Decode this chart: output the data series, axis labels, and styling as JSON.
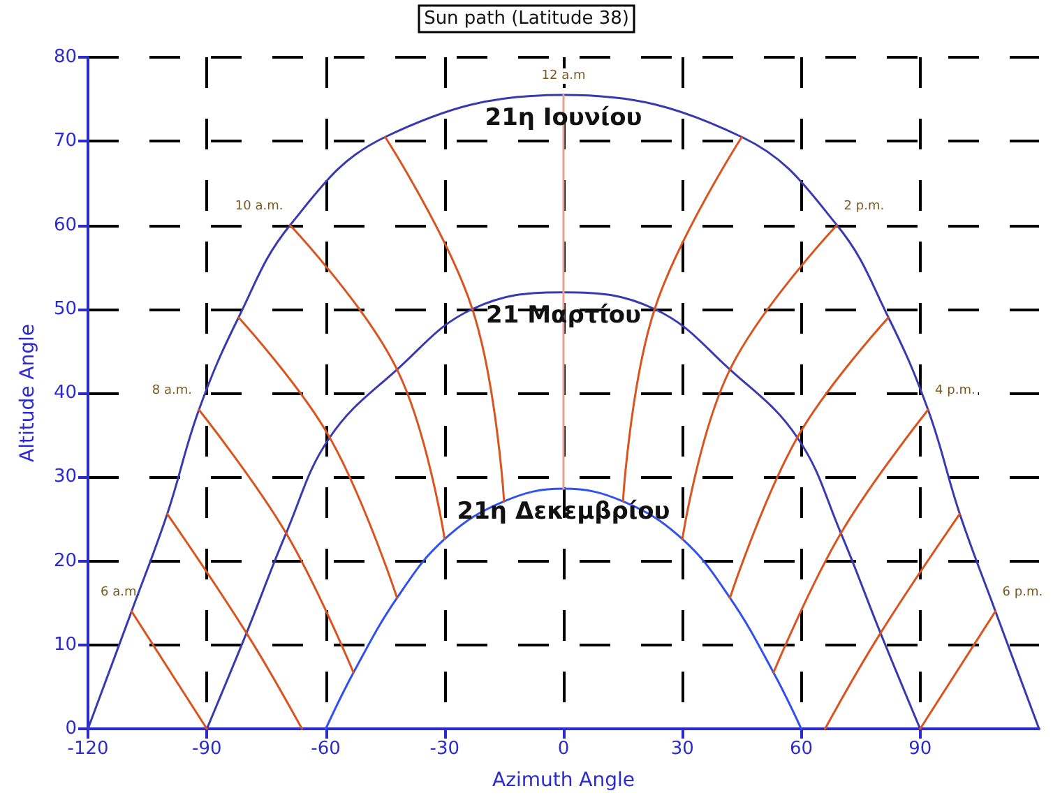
{
  "chart_data": {
    "type": "line",
    "title": "Sun path (Latitude 38)",
    "xlabel": "Azimuth Angle",
    "ylabel": "Altitude Angle",
    "xlim": [
      -120,
      120
    ],
    "xticks": [
      -120,
      -90,
      -60,
      -30,
      0,
      30,
      60,
      90
    ],
    "ylim": [
      0,
      80
    ],
    "yticks": [
      0,
      10,
      20,
      30,
      40,
      50,
      60,
      70,
      80
    ],
    "grid": true,
    "legend": false,
    "line_style": "solid",
    "series": [
      {
        "name": "21η Ιουνίου",
        "color": "#3a3ab0",
        "x": [
          -120,
          -109,
          -100,
          -92,
          -82,
          -69,
          -45,
          0,
          45,
          69,
          82,
          92,
          100,
          109,
          120
        ],
        "values": [
          0,
          14,
          25.6,
          38,
          49,
          60,
          70.5,
          75.5,
          70.5,
          60,
          49,
          38,
          25.6,
          14,
          0
        ]
      },
      {
        "name": "21 Μαρτίου",
        "color": "#3a3ab0",
        "x": [
          -90,
          -80,
          -70,
          -59,
          -42,
          -23,
          0,
          23,
          42,
          59,
          70,
          80,
          90
        ],
        "values": [
          0,
          11.4,
          23.3,
          34.7,
          42.8,
          50,
          52,
          50,
          42.8,
          34.7,
          23.3,
          11.4,
          0
        ]
      },
      {
        "name": "21η Δεκεμβρίου",
        "color": "#3050f0",
        "x": [
          -60,
          -53,
          -42,
          -30,
          -15,
          0,
          15,
          30,
          42,
          53,
          60
        ],
        "values": [
          0,
          6.7,
          15.6,
          22.6,
          27.1,
          28.6,
          27.1,
          22.6,
          15.6,
          6.7,
          0
        ]
      },
      {
        "color": "#d9541e",
        "x": [
          -109,
          -90
        ],
        "values": [
          14,
          0
        ]
      },
      {
        "color": "#d9541e",
        "x": [
          -100,
          -80,
          -66
        ],
        "values": [
          25.6,
          11.4,
          0
        ]
      },
      {
        "color": "#d9541e",
        "x": [
          -92,
          -70,
          -53
        ],
        "values": [
          38,
          23.3,
          6.7
        ]
      },
      {
        "color": "#d9541e",
        "x": [
          -82,
          -59,
          -42
        ],
        "values": [
          49,
          34.7,
          15.6
        ]
      },
      {
        "color": "#d9541e",
        "x": [
          -69,
          -42,
          -30
        ],
        "values": [
          60,
          42.8,
          22.6
        ]
      },
      {
        "color": "#d9541e",
        "x": [
          -45,
          -23,
          -15
        ],
        "values": [
          70.5,
          50,
          27.1
        ]
      },
      {
        "color": "#e8a090",
        "x": [
          0,
          0,
          0
        ],
        "values": [
          75.5,
          52,
          28.6
        ]
      },
      {
        "color": "#d9541e",
        "x": [
          45,
          23,
          15
        ],
        "values": [
          70.5,
          50,
          27.1
        ]
      },
      {
        "color": "#d9541e",
        "x": [
          69,
          42,
          30
        ],
        "values": [
          60,
          42.8,
          22.6
        ]
      },
      {
        "color": "#d9541e",
        "x": [
          82,
          59,
          42
        ],
        "values": [
          49,
          34.7,
          15.6
        ]
      },
      {
        "color": "#d9541e",
        "x": [
          92,
          70,
          53
        ],
        "values": [
          38,
          23.3,
          6.7
        ]
      },
      {
        "color": "#d9541e",
        "x": [
          100,
          80,
          66
        ],
        "values": [
          25.6,
          11.4,
          0
        ]
      },
      {
        "color": "#d9541e",
        "x": [
          109,
          90
        ],
        "values": [
          14,
          0
        ]
      }
    ],
    "annotations": [
      {
        "text": "6 a.m.",
        "x": -109,
        "y": 14
      },
      {
        "text": "8 a.m.",
        "x": -92,
        "y": 38
      },
      {
        "text": "10 a.m.",
        "x": -69,
        "y": 60
      },
      {
        "text": "12 a.m",
        "x": 0,
        "y": 75.5
      },
      {
        "text": "2 p.m.",
        "x": 69,
        "y": 60
      },
      {
        "text": "4 p.m.",
        "x": 92,
        "y": 38
      },
      {
        "text": "6 p.m.",
        "x": 109,
        "y": 14
      }
    ]
  }
}
